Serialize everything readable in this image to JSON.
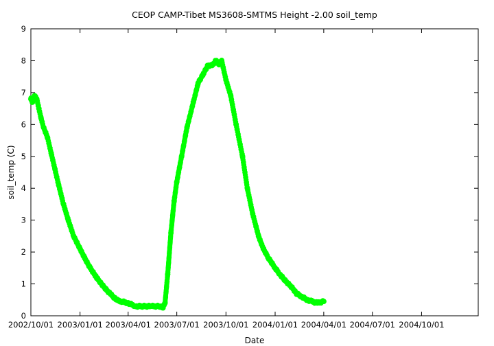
{
  "chart_data": {
    "type": "scatter",
    "title": "CEOP CAMP-Tibet MS3608-SMTMS Height -2.00 soil_temp",
    "xlabel": "Date",
    "ylabel": "soil_temp (C)",
    "xlim": [
      "2002/10/01",
      "2005/01/15"
    ],
    "ylim": [
      0,
      9
    ],
    "x_ticks": [
      "2002/10/01",
      "2003/01/01",
      "2003/04/01",
      "2003/07/01",
      "2003/10/01",
      "2004/01/01",
      "2004/04/01",
      "2004/07/01",
      "2004/10/01"
    ],
    "y_ticks": [
      0,
      1,
      2,
      3,
      4,
      5,
      6,
      7,
      8,
      9
    ],
    "grid": false,
    "legend": "none",
    "series": [
      {
        "color": "#00ff00",
        "x": [
          "2002/10/01",
          "2002/10/04",
          "2002/10/08",
          "2002/10/12",
          "2002/10/16",
          "2002/10/20",
          "2002/10/25",
          "2002/11/01",
          "2002/11/08",
          "2002/11/15",
          "2002/11/22",
          "2002/12/01",
          "2002/12/10",
          "2002/12/20",
          "2003/01/01",
          "2003/01/10",
          "2003/01/20",
          "2003/02/01",
          "2003/02/10",
          "2003/02/20",
          "2003/03/01",
          "2003/03/10",
          "2003/03/20",
          "2003/04/01",
          "2003/04/15",
          "2003/05/01",
          "2003/05/15",
          "2003/05/30",
          "2003/06/05",
          "2003/06/09",
          "2003/06/14",
          "2003/06/20",
          "2003/06/26",
          "2003/07/01",
          "2003/07/10",
          "2003/07/20",
          "2003/08/01",
          "2003/08/10",
          "2003/08/20",
          "2003/08/28",
          "2003/09/05",
          "2003/09/12",
          "2003/09/18",
          "2003/09/23",
          "2003/10/01",
          "2003/10/10",
          "2003/10/20",
          "2003/11/01",
          "2003/11/10",
          "2003/11/20",
          "2003/12/01",
          "2003/12/10",
          "2003/12/20",
          "2004/01/01",
          "2004/01/10",
          "2004/01/20",
          "2004/02/01",
          "2004/02/10",
          "2004/02/20",
          "2004/03/01",
          "2004/03/10",
          "2004/03/20",
          "2004/04/01"
        ],
        "y": [
          6.8,
          6.7,
          6.9,
          6.8,
          6.5,
          6.2,
          5.9,
          5.6,
          5.1,
          4.6,
          4.1,
          3.5,
          3.0,
          2.5,
          2.1,
          1.8,
          1.5,
          1.2,
          1.0,
          0.8,
          0.65,
          0.5,
          0.45,
          0.4,
          0.3,
          0.3,
          0.3,
          0.3,
          0.25,
          0.4,
          1.3,
          2.6,
          3.6,
          4.2,
          5.0,
          5.9,
          6.7,
          7.3,
          7.6,
          7.85,
          7.85,
          8.0,
          7.9,
          8.0,
          7.4,
          6.9,
          6.0,
          5.0,
          4.0,
          3.2,
          2.5,
          2.1,
          1.8,
          1.5,
          1.3,
          1.1,
          0.9,
          0.7,
          0.6,
          0.5,
          0.45,
          0.4,
          0.45
        ]
      }
    ]
  }
}
